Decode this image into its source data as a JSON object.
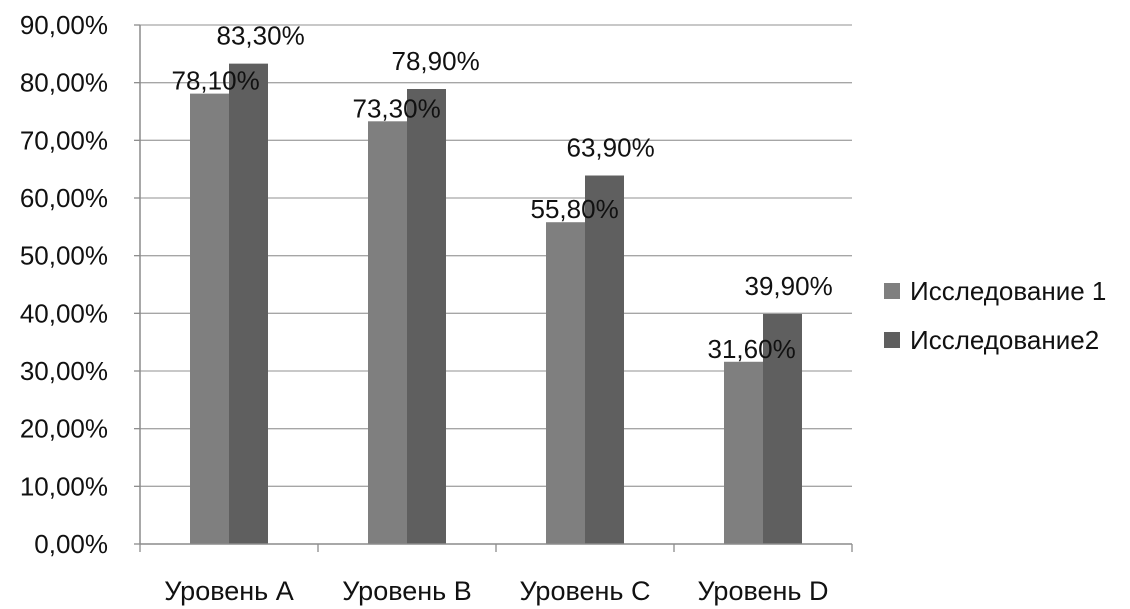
{
  "chart_data": {
    "type": "bar",
    "categories": [
      "Уровень A",
      "Уровень B",
      "Уровень C",
      "Уровень D"
    ],
    "series": [
      {
        "name": "Исследование 1",
        "values": [
          78.1,
          73.3,
          55.8,
          31.6
        ],
        "labels": [
          "78,10%",
          "73,30%",
          "55,80%",
          "31,60%"
        ],
        "color": "#7f7f7f"
      },
      {
        "name": "Исследование2",
        "values": [
          83.3,
          78.9,
          63.9,
          39.9
        ],
        "labels": [
          "83,30%",
          "78,90%",
          "63,90%",
          "39,90%"
        ],
        "color": "#5f5f5f"
      }
    ],
    "yticks": [
      "0,00%",
      "10,00%",
      "20,00%",
      "30,00%",
      "40,00%",
      "50,00%",
      "60,00%",
      "70,00%",
      "80,00%",
      "90,00%"
    ],
    "ylim": [
      0,
      90
    ],
    "grid": true,
    "legend_position": "right",
    "title": "",
    "xlabel": "",
    "ylabel": ""
  }
}
